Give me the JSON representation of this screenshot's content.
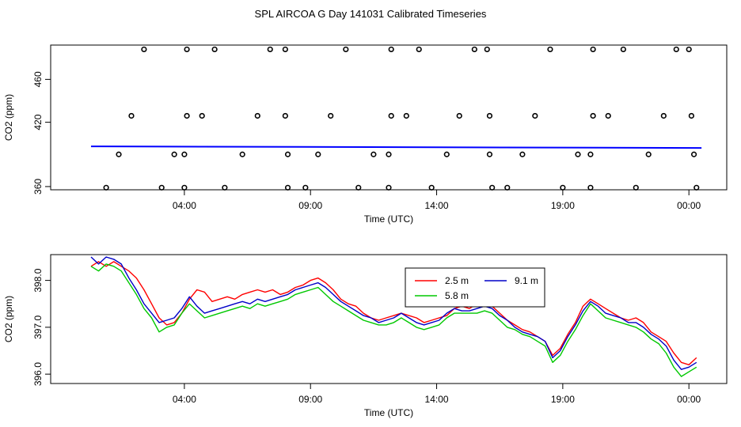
{
  "title": "SPL AIRCOA G  Day 141031  Calibrated Timeseries",
  "chart_data": [
    {
      "type": "scatter",
      "name": "raw-panel",
      "xlabel": "Time (UTC)",
      "ylabel": "CO2 (ppm)",
      "xlim": [
        -1.3,
        25.5
      ],
      "ylim": [
        357,
        492
      ],
      "x_ticks": [
        {
          "value": 4,
          "label": "04:00"
        },
        {
          "value": 9,
          "label": "09:00"
        },
        {
          "value": 14,
          "label": "14:00"
        },
        {
          "value": 19,
          "label": "19:00"
        },
        {
          "value": 24,
          "label": "00:00"
        }
      ],
      "y_ticks": [
        {
          "value": 360,
          "label": "360"
        },
        {
          "value": 420,
          "label": "420"
        },
        {
          "value": 460,
          "label": "460"
        }
      ],
      "line": {
        "name": "baseline",
        "color": "#0000ff",
        "x": [
          0.3,
          24.5
        ],
        "y": [
          397.5,
          396.0
        ]
      },
      "points": [
        [
          0.9,
          359
        ],
        [
          1.4,
          390
        ],
        [
          1.9,
          426
        ],
        [
          2.4,
          488
        ],
        [
          3.1,
          359
        ],
        [
          3.6,
          390
        ],
        [
          4.0,
          359
        ],
        [
          4.0,
          390
        ],
        [
          4.1,
          426
        ],
        [
          4.1,
          488
        ],
        [
          4.7,
          426
        ],
        [
          5.2,
          488
        ],
        [
          5.6,
          359
        ],
        [
          6.3,
          390
        ],
        [
          6.9,
          426
        ],
        [
          7.4,
          488
        ],
        [
          8.0,
          488
        ],
        [
          8.0,
          426
        ],
        [
          8.1,
          390
        ],
        [
          8.1,
          359
        ],
        [
          8.8,
          359
        ],
        [
          9.3,
          390
        ],
        [
          9.8,
          426
        ],
        [
          10.4,
          488
        ],
        [
          10.9,
          359
        ],
        [
          11.5,
          390
        ],
        [
          12.1,
          390
        ],
        [
          12.1,
          359
        ],
        [
          12.2,
          426
        ],
        [
          12.2,
          488
        ],
        [
          12.8,
          426
        ],
        [
          13.3,
          488
        ],
        [
          13.8,
          359
        ],
        [
          14.4,
          390
        ],
        [
          14.9,
          426
        ],
        [
          15.5,
          488
        ],
        [
          16.0,
          488
        ],
        [
          16.1,
          426
        ],
        [
          16.1,
          390
        ],
        [
          16.2,
          359
        ],
        [
          16.8,
          359
        ],
        [
          17.4,
          390
        ],
        [
          17.9,
          426
        ],
        [
          18.5,
          488
        ],
        [
          19.0,
          359
        ],
        [
          19.6,
          390
        ],
        [
          20.1,
          390
        ],
        [
          20.1,
          359
        ],
        [
          20.2,
          426
        ],
        [
          20.2,
          488
        ],
        [
          20.8,
          426
        ],
        [
          21.4,
          488
        ],
        [
          21.9,
          359
        ],
        [
          22.4,
          390
        ],
        [
          23.0,
          426
        ],
        [
          23.5,
          488
        ],
        [
          24.0,
          488
        ],
        [
          24.1,
          426
        ],
        [
          24.2,
          390
        ],
        [
          24.3,
          359
        ]
      ]
    },
    {
      "type": "line",
      "name": "calibrated-panel",
      "xlabel": "Time (UTC)",
      "ylabel": "CO2 (ppm)",
      "xlim": [
        -1.3,
        25.5
      ],
      "ylim": [
        395.8,
        398.55
      ],
      "x_ticks": [
        {
          "value": 4,
          "label": "04:00"
        },
        {
          "value": 9,
          "label": "09:00"
        },
        {
          "value": 14,
          "label": "14:00"
        },
        {
          "value": 19,
          "label": "19:00"
        },
        {
          "value": 24,
          "label": "00:00"
        }
      ],
      "y_ticks": [
        {
          "value": 396.0,
          "label": "396.0"
        },
        {
          "value": 397.0,
          "label": "397.0"
        },
        {
          "value": 398.0,
          "label": "398.0"
        }
      ],
      "legend": {
        "position": "top-center",
        "entries": [
          {
            "label": "2.5 m",
            "color": "#ff0000"
          },
          {
            "label": "9.1 m",
            "color": "#0000c8"
          },
          {
            "label": "5.8 m",
            "color": "#00c800"
          }
        ]
      },
      "series": [
        {
          "name": "2.5 m",
          "color": "#ff0000",
          "x": [
            0.3,
            0.6,
            0.9,
            1.2,
            1.5,
            1.8,
            2.1,
            2.4,
            2.7,
            3.0,
            3.3,
            3.6,
            3.9,
            4.2,
            4.5,
            4.8,
            5.1,
            5.4,
            5.7,
            6.0,
            6.3,
            6.6,
            6.9,
            7.2,
            7.5,
            7.8,
            8.1,
            8.4,
            8.7,
            9.0,
            9.3,
            9.6,
            9.9,
            10.2,
            10.5,
            10.8,
            11.1,
            11.4,
            11.7,
            12.0,
            12.3,
            12.6,
            12.9,
            13.2,
            13.5,
            13.8,
            14.1,
            14.4,
            14.7,
            15.0,
            15.3,
            15.6,
            15.9,
            16.2,
            16.5,
            16.8,
            17.1,
            17.4,
            17.7,
            18.0,
            18.3,
            18.6,
            18.9,
            19.2,
            19.5,
            19.8,
            20.1,
            20.4,
            20.7,
            21.0,
            21.3,
            21.6,
            21.9,
            22.2,
            22.5,
            22.8,
            23.1,
            23.4,
            23.7,
            24.0,
            24.3
          ],
          "y": [
            398.3,
            398.4,
            398.3,
            398.4,
            398.3,
            398.2,
            398.05,
            397.8,
            397.5,
            397.2,
            397.05,
            397.1,
            397.3,
            397.6,
            397.8,
            397.75,
            397.55,
            397.6,
            397.65,
            397.6,
            397.7,
            397.75,
            397.8,
            397.75,
            397.8,
            397.7,
            397.75,
            397.85,
            397.9,
            398.0,
            398.05,
            397.95,
            397.8,
            397.6,
            397.5,
            397.45,
            397.3,
            397.2,
            397.15,
            397.2,
            397.25,
            397.3,
            397.25,
            397.2,
            397.1,
            397.15,
            397.2,
            397.25,
            397.4,
            397.45,
            397.4,
            397.5,
            397.5,
            397.45,
            397.3,
            397.15,
            397.05,
            396.95,
            396.9,
            396.8,
            396.7,
            396.4,
            396.55,
            396.85,
            397.1,
            397.45,
            397.6,
            397.5,
            397.4,
            397.3,
            397.2,
            397.15,
            397.2,
            397.1,
            396.9,
            396.8,
            396.7,
            396.45,
            396.25,
            396.2,
            396.35
          ]
        },
        {
          "name": "9.1 m",
          "color": "#0000c8",
          "x": [
            0.3,
            0.6,
            0.9,
            1.2,
            1.5,
            1.8,
            2.1,
            2.4,
            2.7,
            3.0,
            3.3,
            3.6,
            3.9,
            4.2,
            4.5,
            4.8,
            5.1,
            5.4,
            5.7,
            6.0,
            6.3,
            6.6,
            6.9,
            7.2,
            7.5,
            7.8,
            8.1,
            8.4,
            8.7,
            9.0,
            9.3,
            9.6,
            9.9,
            10.2,
            10.5,
            10.8,
            11.1,
            11.4,
            11.7,
            12.0,
            12.3,
            12.6,
            12.9,
            13.2,
            13.5,
            13.8,
            14.1,
            14.4,
            14.7,
            15.0,
            15.3,
            15.6,
            15.9,
            16.2,
            16.5,
            16.8,
            17.1,
            17.4,
            17.7,
            18.0,
            18.3,
            18.6,
            18.9,
            19.2,
            19.5,
            19.8,
            20.1,
            20.4,
            20.7,
            21.0,
            21.3,
            21.6,
            21.9,
            22.2,
            22.5,
            22.8,
            23.1,
            23.4,
            23.7,
            24.0,
            24.3
          ],
          "y": [
            398.5,
            398.35,
            398.5,
            398.45,
            398.35,
            398.05,
            397.8,
            397.5,
            397.3,
            397.1,
            397.15,
            397.2,
            397.4,
            397.65,
            397.45,
            397.3,
            397.35,
            397.4,
            397.45,
            397.5,
            397.55,
            397.5,
            397.6,
            397.55,
            397.6,
            397.65,
            397.7,
            397.8,
            397.85,
            397.9,
            397.95,
            397.85,
            397.7,
            397.55,
            397.45,
            397.35,
            397.25,
            397.2,
            397.1,
            397.15,
            397.2,
            397.3,
            397.2,
            397.1,
            397.05,
            397.1,
            397.15,
            397.3,
            397.4,
            397.35,
            397.35,
            397.4,
            397.45,
            397.4,
            397.25,
            397.15,
            397.0,
            396.9,
            396.85,
            396.8,
            396.7,
            396.35,
            396.5,
            396.8,
            397.05,
            397.35,
            397.55,
            397.45,
            397.3,
            397.25,
            397.2,
            397.1,
            397.1,
            397.0,
            396.85,
            396.75,
            396.6,
            396.3,
            396.1,
            396.15,
            396.25
          ]
        },
        {
          "name": "5.8 m",
          "color": "#00c800",
          "x": [
            0.3,
            0.6,
            0.9,
            1.2,
            1.5,
            1.8,
            2.1,
            2.4,
            2.7,
            3.0,
            3.3,
            3.6,
            3.9,
            4.2,
            4.5,
            4.8,
            5.1,
            5.4,
            5.7,
            6.0,
            6.3,
            6.6,
            6.9,
            7.2,
            7.5,
            7.8,
            8.1,
            8.4,
            8.7,
            9.0,
            9.3,
            9.6,
            9.9,
            10.2,
            10.5,
            10.8,
            11.1,
            11.4,
            11.7,
            12.0,
            12.3,
            12.6,
            12.9,
            13.2,
            13.5,
            13.8,
            14.1,
            14.4,
            14.7,
            15.0,
            15.3,
            15.6,
            15.9,
            16.2,
            16.5,
            16.8,
            17.1,
            17.4,
            17.7,
            18.0,
            18.3,
            18.6,
            18.9,
            19.2,
            19.5,
            19.8,
            20.1,
            20.4,
            20.7,
            21.0,
            21.3,
            21.6,
            21.9,
            22.2,
            22.5,
            22.8,
            23.1,
            23.4,
            23.7,
            24.0,
            24.3
          ],
          "y": [
            398.3,
            398.2,
            398.35,
            398.3,
            398.2,
            397.95,
            397.7,
            397.4,
            397.2,
            396.9,
            397.0,
            397.05,
            397.3,
            397.5,
            397.35,
            397.2,
            397.25,
            397.3,
            397.35,
            397.4,
            397.45,
            397.4,
            397.5,
            397.45,
            397.5,
            397.55,
            397.6,
            397.7,
            397.75,
            397.8,
            397.85,
            397.7,
            397.55,
            397.45,
            397.35,
            397.25,
            397.15,
            397.1,
            397.05,
            397.05,
            397.1,
            397.2,
            397.1,
            397.0,
            396.95,
            397.0,
            397.05,
            397.2,
            397.3,
            397.3,
            397.3,
            397.3,
            397.35,
            397.3,
            397.15,
            397.0,
            396.95,
            396.85,
            396.8,
            396.7,
            396.6,
            396.25,
            396.4,
            396.7,
            396.95,
            397.25,
            397.5,
            397.35,
            397.2,
            397.15,
            397.1,
            397.05,
            397.0,
            396.9,
            396.75,
            396.65,
            396.45,
            396.15,
            395.95,
            396.05,
            396.15
          ]
        }
      ]
    }
  ]
}
